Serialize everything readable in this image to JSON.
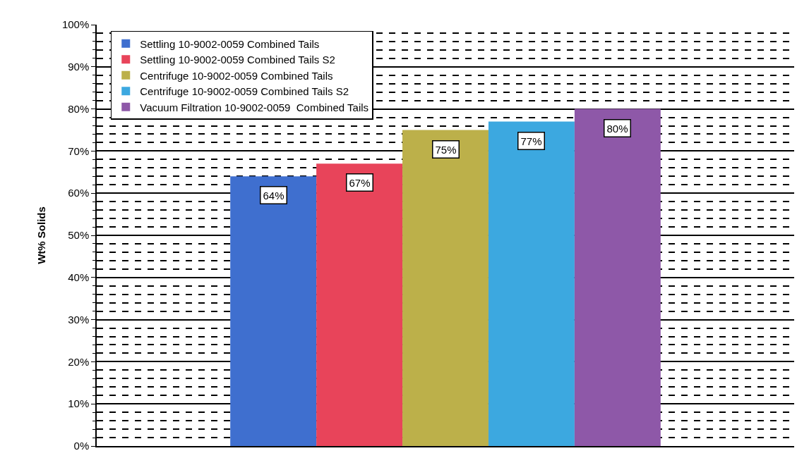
{
  "chart_data": {
    "type": "bar",
    "ylabel": "Wt% Solids",
    "categories": [
      null
    ],
    "series": [
      {
        "name": "Settling 10-9002-0059 Combined Tails",
        "color": "#3f6fcf",
        "values": [
          64
        ],
        "value_labels": [
          "64%"
        ]
      },
      {
        "name": "Settling 10-9002-0059 Combined Tails S2",
        "color": "#e8445a",
        "values": [
          67
        ],
        "value_labels": [
          "67%"
        ]
      },
      {
        "name": "Centrifuge 10-9002-0059 Combined Tails",
        "color": "#bcb04a",
        "values": [
          75
        ],
        "value_labels": [
          "75%"
        ]
      },
      {
        "name": "Centrifuge 10-9002-0059 Combined Tails S2",
        "color": "#3ca8e0",
        "values": [
          77
        ],
        "value_labels": [
          "77%"
        ]
      },
      {
        "name": "Vacuum Filtration 10-9002-0059  Combined Tails",
        "color": "#8e58a8",
        "values": [
          80
        ],
        "value_labels": [
          "80%"
        ]
      }
    ],
    "ylim": [
      0,
      100
    ],
    "yticks": [
      {
        "value": 0,
        "label": "0%"
      },
      {
        "value": 2,
        "label": null
      },
      {
        "value": 4,
        "label": null
      },
      {
        "value": 6,
        "label": null
      },
      {
        "value": 8,
        "label": null
      },
      {
        "value": 10,
        "label": "10%"
      },
      {
        "value": 12,
        "label": null
      },
      {
        "value": 14,
        "label": null
      },
      {
        "value": 16,
        "label": null
      },
      {
        "value": 18,
        "label": null
      },
      {
        "value": 20,
        "label": "20%"
      },
      {
        "value": 22,
        "label": null
      },
      {
        "value": 24,
        "label": null
      },
      {
        "value": 26,
        "label": null
      },
      {
        "value": 28,
        "label": null
      },
      {
        "value": 30,
        "label": "30%"
      },
      {
        "value": 32,
        "label": null
      },
      {
        "value": 34,
        "label": null
      },
      {
        "value": 36,
        "label": null
      },
      {
        "value": 38,
        "label": null
      },
      {
        "value": 40,
        "label": "40%"
      },
      {
        "value": 42,
        "label": null
      },
      {
        "value": 44,
        "label": null
      },
      {
        "value": 46,
        "label": null
      },
      {
        "value": 48,
        "label": null
      },
      {
        "value": 50,
        "label": "50%"
      },
      {
        "value": 52,
        "label": null
      },
      {
        "value": 54,
        "label": null
      },
      {
        "value": 56,
        "label": null
      },
      {
        "value": 58,
        "label": null
      },
      {
        "value": 60,
        "label": "60%"
      },
      {
        "value": 62,
        "label": null
      },
      {
        "value": 64,
        "label": null
      },
      {
        "value": 66,
        "label": null
      },
      {
        "value": 68,
        "label": null
      },
      {
        "value": 70,
        "label": "70%"
      },
      {
        "value": 72,
        "label": null
      },
      {
        "value": 74,
        "label": null
      },
      {
        "value": 76,
        "label": null
      },
      {
        "value": 78,
        "label": null
      },
      {
        "value": 80,
        "label": "80%"
      },
      {
        "value": 82,
        "label": null
      },
      {
        "value": 84,
        "label": null
      },
      {
        "value": 86,
        "label": null
      },
      {
        "value": 88,
        "label": null
      },
      {
        "value": 90,
        "label": "90%"
      },
      {
        "value": 92,
        "label": null
      },
      {
        "value": 94,
        "label": null
      },
      {
        "value": 96,
        "label": null
      },
      {
        "value": 98,
        "label": null
      },
      {
        "value": 100,
        "label": "100%"
      }
    ],
    "grid": "y",
    "legend": "top left"
  }
}
